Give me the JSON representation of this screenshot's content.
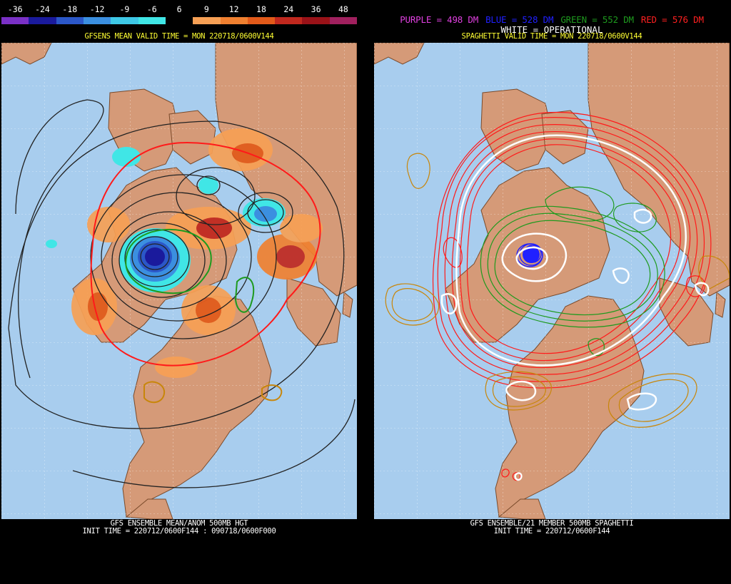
{
  "colorbar": {
    "labels": [
      "-36",
      "-24",
      "-18",
      "-12",
      "-9",
      "-6",
      "6",
      "9",
      "12",
      "18",
      "24",
      "36",
      "48"
    ],
    "colors": [
      "#7a30c6",
      "#1a1a9c",
      "#2b57c8",
      "#3b8fe0",
      "#3ec8e6",
      "#40e6e6",
      "#000000",
      "#f7a055",
      "#f08030",
      "#e25a1a",
      "#c0281e",
      "#9a1218",
      "#a0205e"
    ]
  },
  "left": {
    "valid_title": "GFSENS MEAN VALID TIME = MON 220718/0600V144",
    "bottom_line1": "GFS ENSEMBLE MEAN/ANOM 500MB HGT",
    "bottom_line2": "INIT TIME = 220712/0600F144 : 090718/0600F000"
  },
  "right": {
    "legend": {
      "purple": "PURPLE = 498 DM",
      "blue": "BLUE = 528 DM",
      "green": "GREEN = 552 DM",
      "red": "RED = 576 DM",
      "white": "WHITE = OPERATIONAL"
    },
    "valid_title": "SPAGHETTI VALID TIME = MON 220718/0600V144",
    "bottom_line1": "GFS ENSEMBLE/21 MEMBER 500MB SPAGHETTI",
    "bottom_line2": "INIT TIME = 220712/0600F144"
  },
  "colors": {
    "ocean": "#a8cdee",
    "land": "#d59a78",
    "border": "#7a4a2a",
    "legend_purple": "#e040e0",
    "legend_blue": "#2020ff",
    "legend_green": "#1e9a1e",
    "legend_red": "#ff2020"
  }
}
